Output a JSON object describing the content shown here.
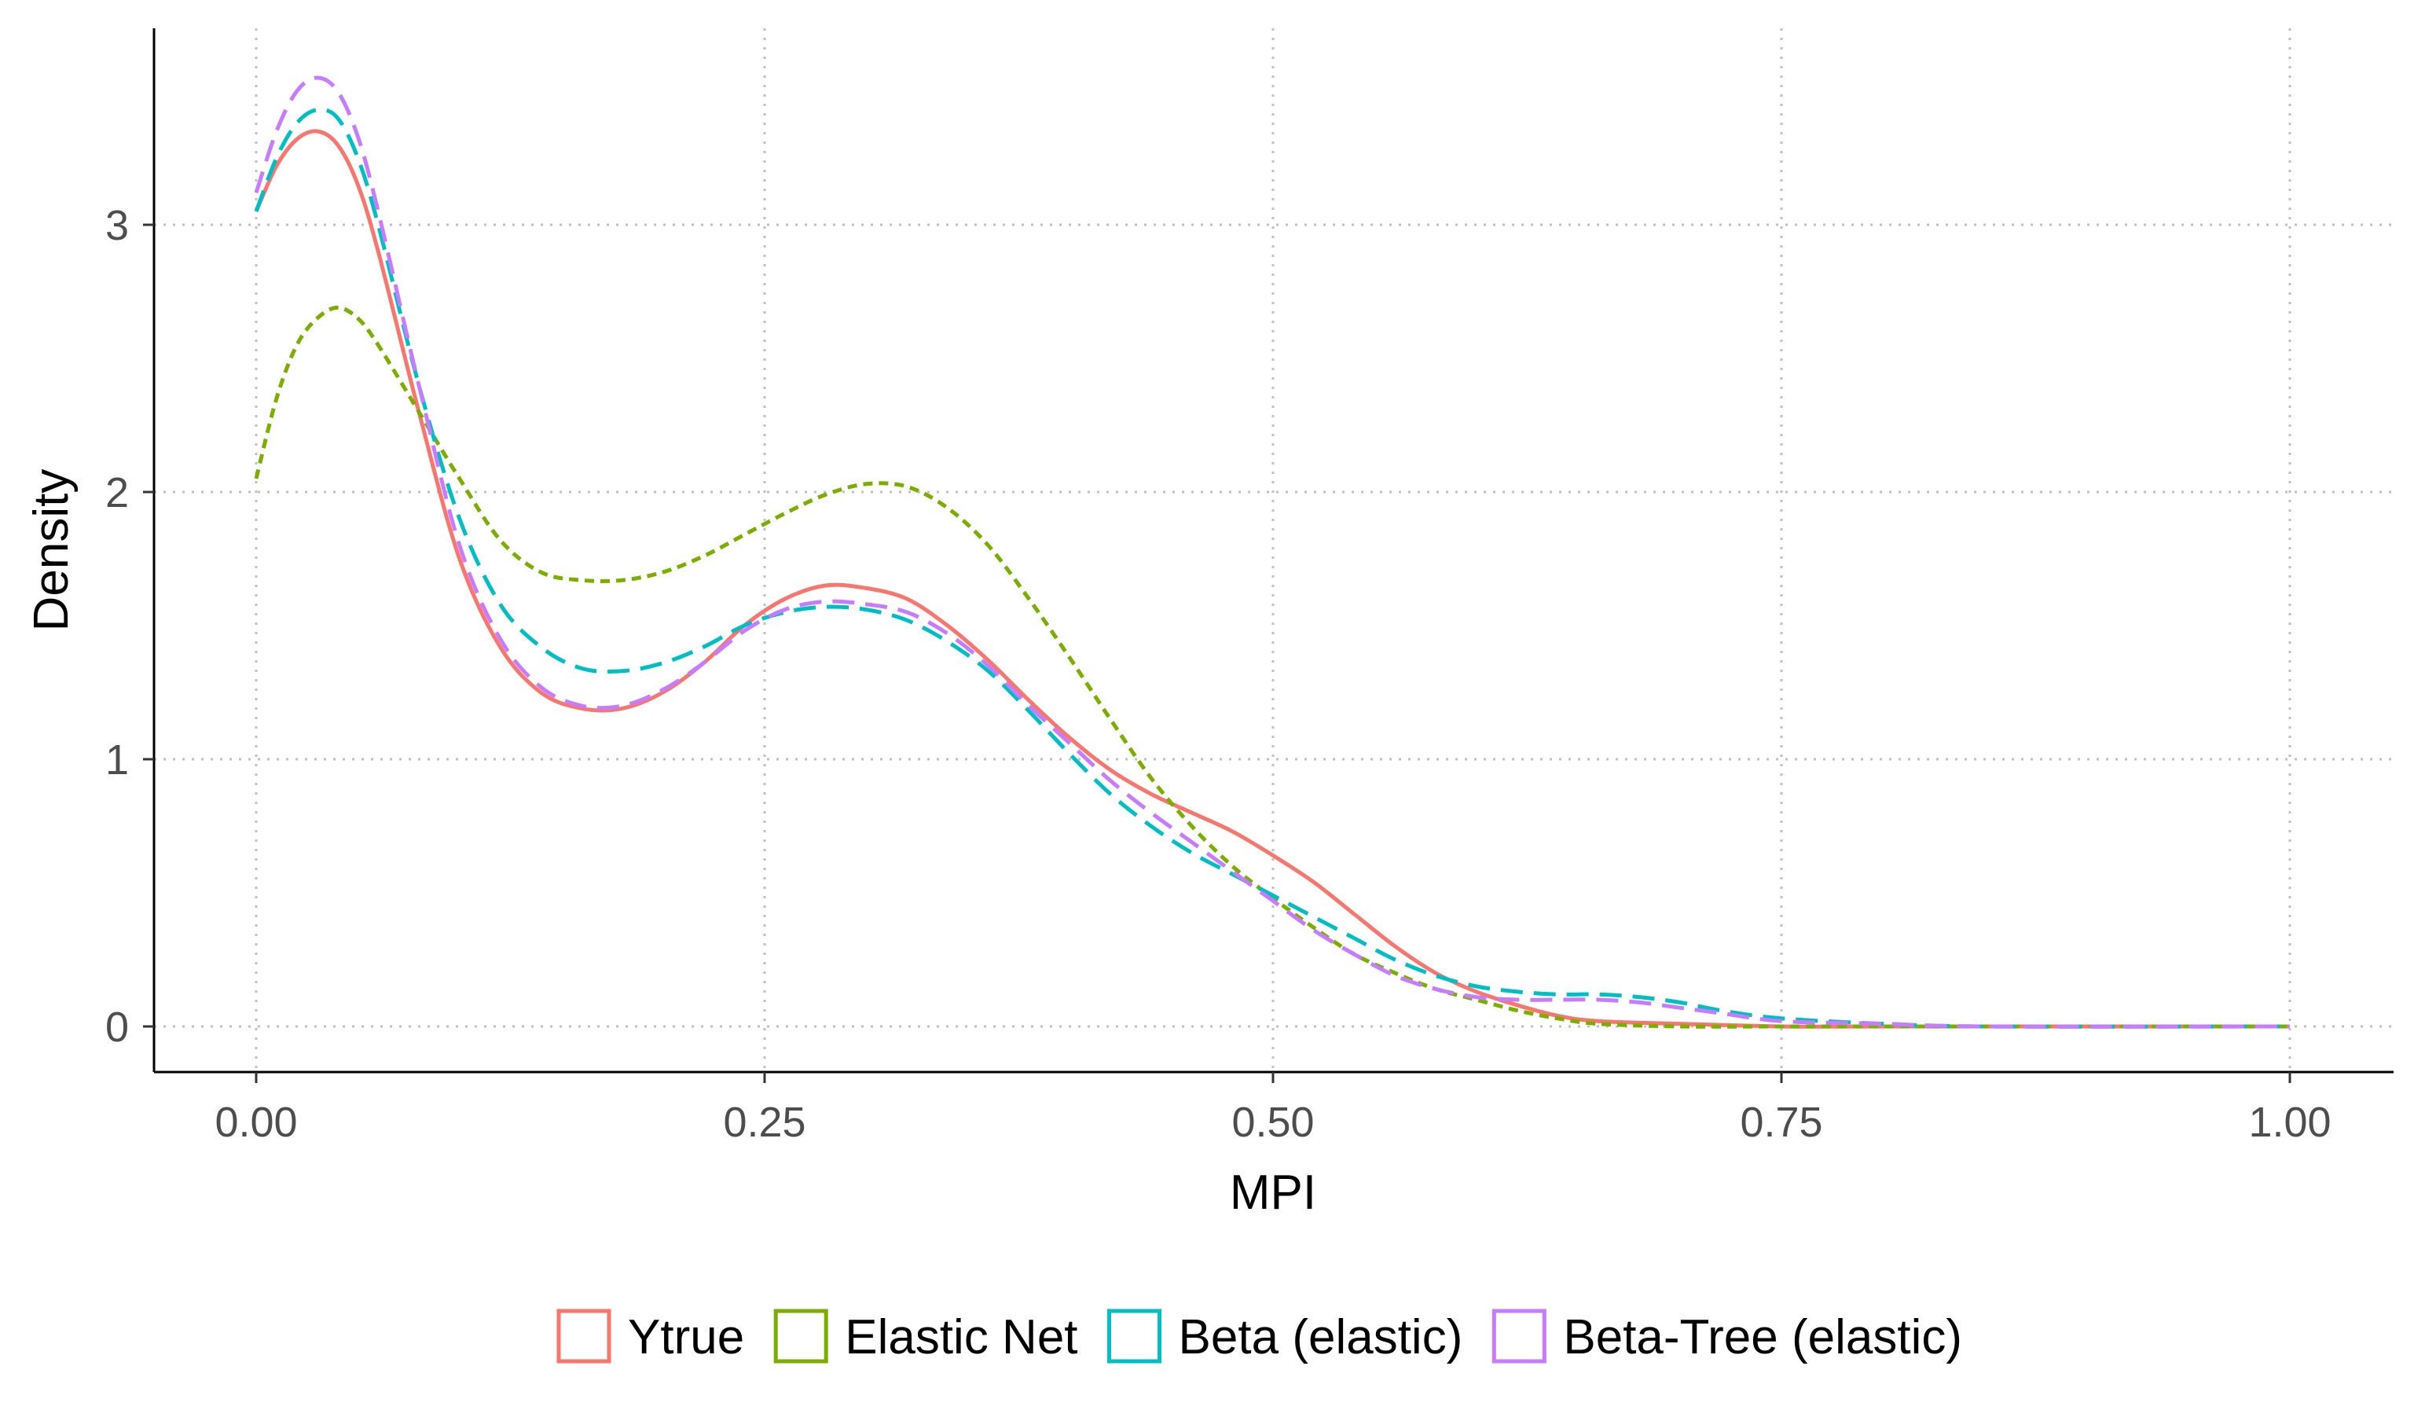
{
  "chart_data": {
    "type": "line",
    "title": "",
    "xlabel": "MPI",
    "ylabel": "Density",
    "xlim": [
      0,
      1
    ],
    "ylim": [
      0,
      3.5
    ],
    "x_ticks": [
      0,
      0.25,
      0.5,
      0.75,
      1
    ],
    "x_tick_labels": [
      "0.00",
      "0.25",
      "0.50",
      "0.75",
      "1.00"
    ],
    "y_ticks": [
      0,
      1,
      2,
      3
    ],
    "y_tick_labels": [
      "0",
      "1",
      "2",
      "3"
    ],
    "grid": "dotted major gridlines",
    "legend_position": "bottom",
    "series": [
      {
        "name": "Ytrue",
        "color": "#F8766D",
        "dash": "solid",
        "points": [
          [
            0.0,
            3.05
          ],
          [
            0.01,
            3.22
          ],
          [
            0.02,
            3.32
          ],
          [
            0.03,
            3.35
          ],
          [
            0.04,
            3.3
          ],
          [
            0.05,
            3.15
          ],
          [
            0.06,
            2.9
          ],
          [
            0.08,
            2.3
          ],
          [
            0.1,
            1.75
          ],
          [
            0.12,
            1.42
          ],
          [
            0.14,
            1.25
          ],
          [
            0.16,
            1.19
          ],
          [
            0.18,
            1.19
          ],
          [
            0.2,
            1.25
          ],
          [
            0.22,
            1.36
          ],
          [
            0.24,
            1.5
          ],
          [
            0.26,
            1.6
          ],
          [
            0.28,
            1.65
          ],
          [
            0.3,
            1.64
          ],
          [
            0.32,
            1.6
          ],
          [
            0.34,
            1.5
          ],
          [
            0.36,
            1.37
          ],
          [
            0.38,
            1.22
          ],
          [
            0.4,
            1.08
          ],
          [
            0.42,
            0.96
          ],
          [
            0.44,
            0.87
          ],
          [
            0.46,
            0.8
          ],
          [
            0.48,
            0.73
          ],
          [
            0.5,
            0.64
          ],
          [
            0.52,
            0.54
          ],
          [
            0.54,
            0.42
          ],
          [
            0.56,
            0.3
          ],
          [
            0.58,
            0.2
          ],
          [
            0.6,
            0.13
          ],
          [
            0.62,
            0.08
          ],
          [
            0.64,
            0.04
          ],
          [
            0.66,
            0.02
          ],
          [
            0.7,
            0.01
          ],
          [
            0.75,
            0.0
          ],
          [
            0.8,
            0.0
          ],
          [
            1.0,
            0.0
          ]
        ]
      },
      {
        "name": "Elastic Net",
        "color": "#7CAE00",
        "dash": "dotted",
        "points": [
          [
            0.0,
            2.05
          ],
          [
            0.01,
            2.35
          ],
          [
            0.02,
            2.55
          ],
          [
            0.03,
            2.65
          ],
          [
            0.04,
            2.69
          ],
          [
            0.05,
            2.65
          ],
          [
            0.06,
            2.55
          ],
          [
            0.08,
            2.3
          ],
          [
            0.1,
            2.05
          ],
          [
            0.12,
            1.82
          ],
          [
            0.14,
            1.7
          ],
          [
            0.16,
            1.67
          ],
          [
            0.18,
            1.67
          ],
          [
            0.2,
            1.7
          ],
          [
            0.22,
            1.76
          ],
          [
            0.24,
            1.84
          ],
          [
            0.26,
            1.92
          ],
          [
            0.28,
            1.99
          ],
          [
            0.3,
            2.03
          ],
          [
            0.32,
            2.02
          ],
          [
            0.34,
            1.94
          ],
          [
            0.36,
            1.8
          ],
          [
            0.38,
            1.6
          ],
          [
            0.4,
            1.38
          ],
          [
            0.42,
            1.15
          ],
          [
            0.44,
            0.93
          ],
          [
            0.46,
            0.75
          ],
          [
            0.48,
            0.6
          ],
          [
            0.5,
            0.48
          ],
          [
            0.52,
            0.37
          ],
          [
            0.54,
            0.27
          ],
          [
            0.56,
            0.2
          ],
          [
            0.58,
            0.14
          ],
          [
            0.6,
            0.1
          ],
          [
            0.62,
            0.06
          ],
          [
            0.64,
            0.03
          ],
          [
            0.66,
            0.01
          ],
          [
            0.7,
            0.0
          ],
          [
            0.75,
            0.0
          ],
          [
            0.8,
            0.0
          ],
          [
            1.0,
            0.0
          ]
        ]
      },
      {
        "name": "Beta (elastic)",
        "color": "#00BFC4",
        "dash": "dashed",
        "points": [
          [
            0.0,
            3.05
          ],
          [
            0.01,
            3.25
          ],
          [
            0.02,
            3.38
          ],
          [
            0.03,
            3.43
          ],
          [
            0.04,
            3.4
          ],
          [
            0.05,
            3.25
          ],
          [
            0.06,
            3.0
          ],
          [
            0.08,
            2.4
          ],
          [
            0.1,
            1.9
          ],
          [
            0.12,
            1.58
          ],
          [
            0.14,
            1.42
          ],
          [
            0.16,
            1.34
          ],
          [
            0.18,
            1.33
          ],
          [
            0.2,
            1.36
          ],
          [
            0.22,
            1.42
          ],
          [
            0.24,
            1.5
          ],
          [
            0.26,
            1.55
          ],
          [
            0.28,
            1.57
          ],
          [
            0.3,
            1.56
          ],
          [
            0.32,
            1.52
          ],
          [
            0.34,
            1.44
          ],
          [
            0.36,
            1.33
          ],
          [
            0.38,
            1.18
          ],
          [
            0.4,
            1.02
          ],
          [
            0.42,
            0.87
          ],
          [
            0.44,
            0.75
          ],
          [
            0.46,
            0.65
          ],
          [
            0.48,
            0.57
          ],
          [
            0.5,
            0.49
          ],
          [
            0.52,
            0.41
          ],
          [
            0.54,
            0.33
          ],
          [
            0.56,
            0.25
          ],
          [
            0.58,
            0.19
          ],
          [
            0.6,
            0.15
          ],
          [
            0.62,
            0.13
          ],
          [
            0.64,
            0.12
          ],
          [
            0.66,
            0.12
          ],
          [
            0.68,
            0.11
          ],
          [
            0.7,
            0.09
          ],
          [
            0.72,
            0.06
          ],
          [
            0.75,
            0.03
          ],
          [
            0.8,
            0.01
          ],
          [
            0.85,
            0.0
          ],
          [
            1.0,
            0.0
          ]
        ]
      },
      {
        "name": "Beta-Tree (elastic)",
        "color": "#C77CFF",
        "dash": "dashed",
        "points": [
          [
            0.0,
            3.12
          ],
          [
            0.01,
            3.35
          ],
          [
            0.02,
            3.5
          ],
          [
            0.03,
            3.55
          ],
          [
            0.04,
            3.5
          ],
          [
            0.05,
            3.33
          ],
          [
            0.06,
            3.05
          ],
          [
            0.08,
            2.4
          ],
          [
            0.1,
            1.8
          ],
          [
            0.12,
            1.45
          ],
          [
            0.14,
            1.27
          ],
          [
            0.16,
            1.2
          ],
          [
            0.18,
            1.2
          ],
          [
            0.2,
            1.26
          ],
          [
            0.22,
            1.36
          ],
          [
            0.24,
            1.48
          ],
          [
            0.26,
            1.56
          ],
          [
            0.28,
            1.59
          ],
          [
            0.3,
            1.58
          ],
          [
            0.32,
            1.55
          ],
          [
            0.34,
            1.47
          ],
          [
            0.36,
            1.35
          ],
          [
            0.38,
            1.2
          ],
          [
            0.4,
            1.06
          ],
          [
            0.42,
            0.92
          ],
          [
            0.44,
            0.8
          ],
          [
            0.46,
            0.69
          ],
          [
            0.48,
            0.58
          ],
          [
            0.5,
            0.47
          ],
          [
            0.52,
            0.36
          ],
          [
            0.54,
            0.27
          ],
          [
            0.56,
            0.19
          ],
          [
            0.58,
            0.14
          ],
          [
            0.6,
            0.11
          ],
          [
            0.62,
            0.1
          ],
          [
            0.64,
            0.1
          ],
          [
            0.66,
            0.1
          ],
          [
            0.68,
            0.09
          ],
          [
            0.7,
            0.07
          ],
          [
            0.72,
            0.05
          ],
          [
            0.75,
            0.02
          ],
          [
            0.8,
            0.01
          ],
          [
            0.85,
            0.0
          ],
          [
            1.0,
            0.0
          ]
        ]
      }
    ]
  }
}
